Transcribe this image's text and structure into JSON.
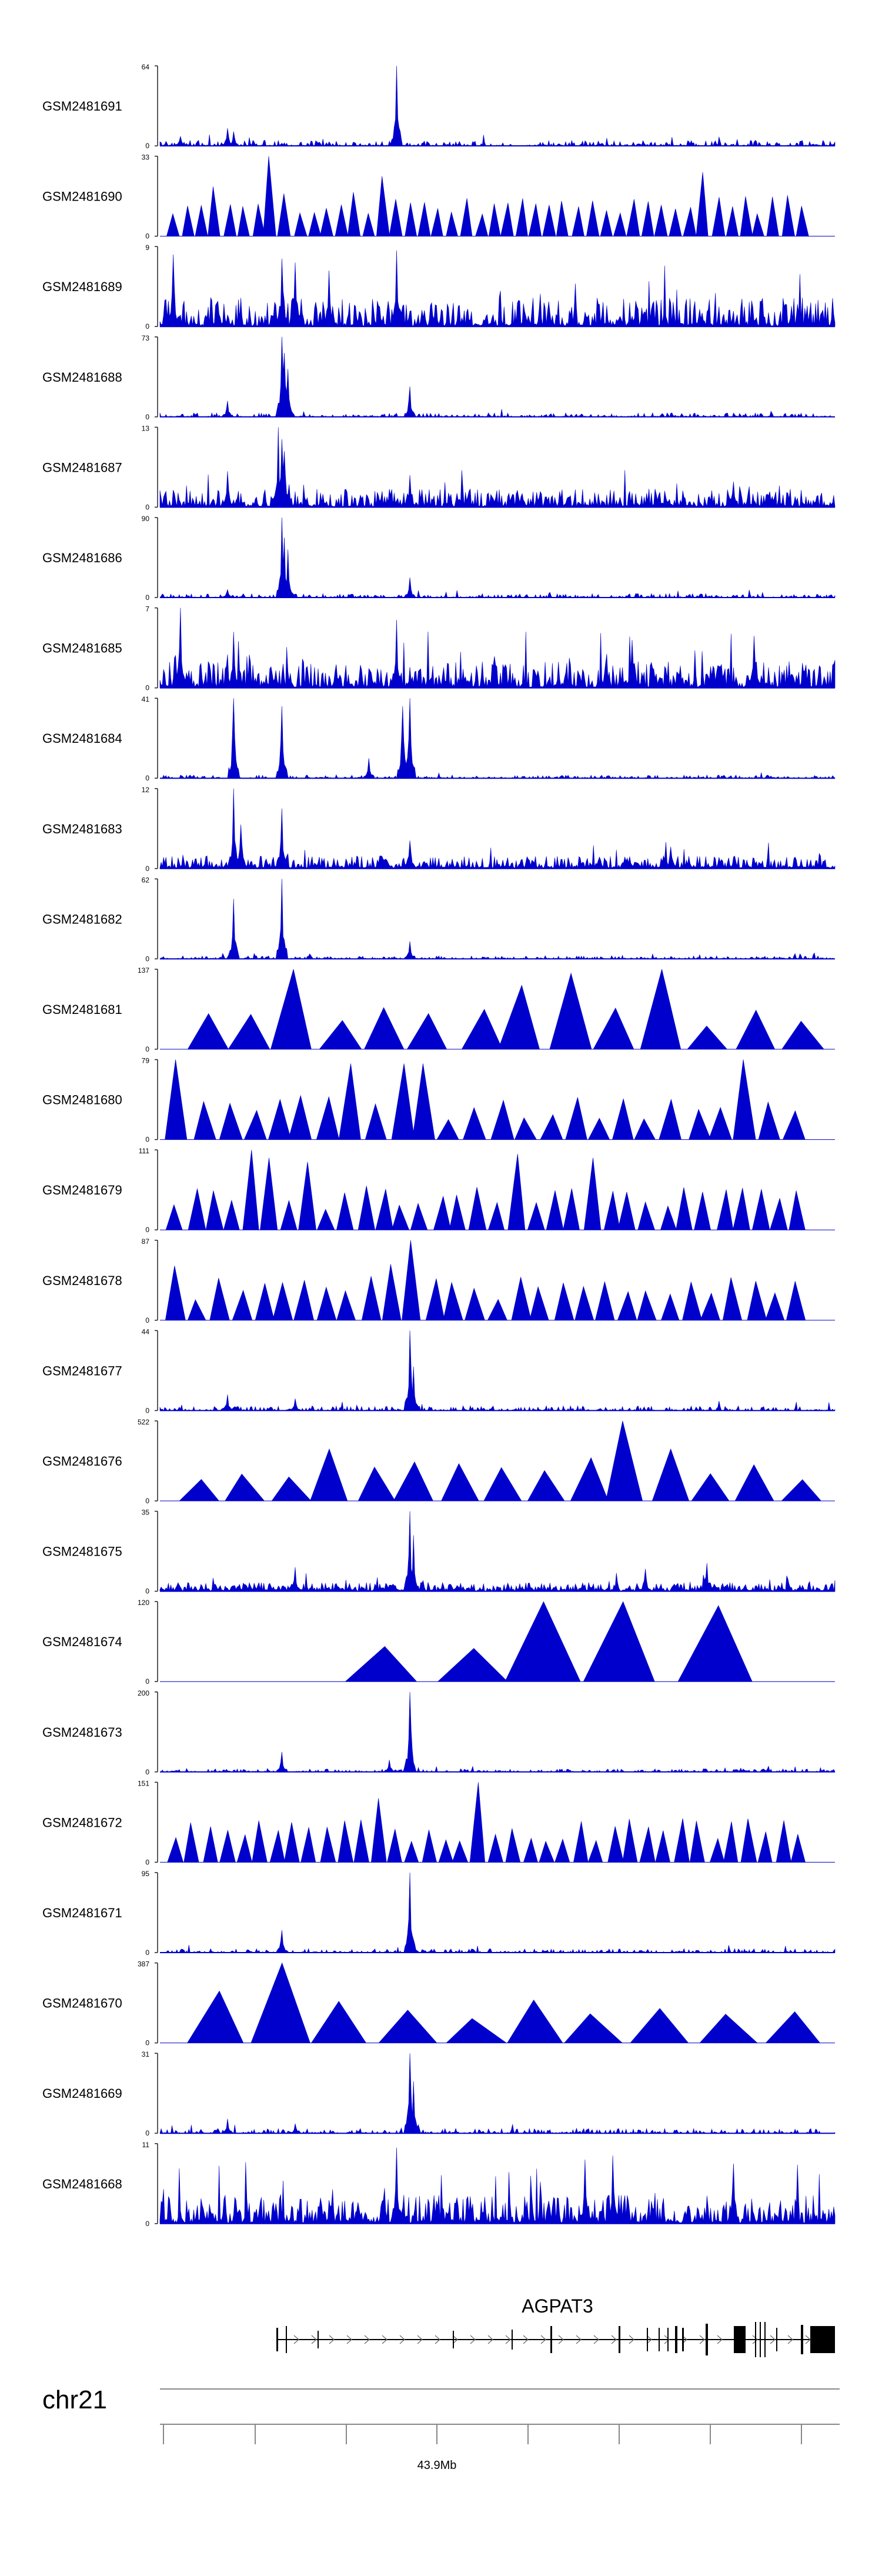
{
  "chart_data": {
    "type": "area",
    "title": "",
    "chromosome": "chr21",
    "gene": "AGPAT3",
    "axis_tick_label": "43.9Mb",
    "track_color": "#0000cc",
    "gene_color": "#000000",
    "baseline_label": "0",
    "tracks": [
      {
        "name": "GSM2481691",
        "ymax": 64,
        "ymax_label": "64",
        "style": "spiky",
        "density": 0.55,
        "bg": 0.06,
        "peaks": [
          [
            0.35,
            1.0
          ],
          [
            0.1,
            0.22
          ],
          [
            0.11,
            0.18
          ],
          [
            0.03,
            0.12
          ]
        ]
      },
      {
        "name": "GSM2481690",
        "ymax": 33,
        "ymax_label": "33",
        "style": "triangle",
        "n": 46,
        "peaks": [
          [
            0.16,
            1.0
          ],
          [
            0.09,
            0.62
          ],
          [
            0.29,
            0.55
          ],
          [
            0.33,
            0.75
          ],
          [
            0.8,
            0.8
          ],
          [
            0.99,
            0.78
          ]
        ]
      },
      {
        "name": "GSM2481689",
        "ymax": 9,
        "ymax_label": "9",
        "style": "spiky",
        "density": 1.0,
        "bg": 0.35,
        "peaks": [
          [
            0.02,
            0.9
          ],
          [
            0.18,
            0.85
          ],
          [
            0.2,
            0.8
          ],
          [
            0.25,
            0.7
          ],
          [
            0.35,
            0.95
          ]
        ]
      },
      {
        "name": "GSM2481688",
        "ymax": 73,
        "ymax_label": "73",
        "style": "spiky",
        "density": 0.45,
        "bg": 0.04,
        "peaks": [
          [
            0.18,
            1.0
          ],
          [
            0.185,
            0.8
          ],
          [
            0.19,
            0.6
          ],
          [
            0.1,
            0.2
          ],
          [
            0.37,
            0.38
          ]
        ]
      },
      {
        "name": "GSM2481687",
        "ymax": 13,
        "ymax_label": "13",
        "style": "spiky",
        "density": 1.0,
        "bg": 0.22,
        "peaks": [
          [
            0.175,
            1.0
          ],
          [
            0.18,
            0.85
          ],
          [
            0.185,
            0.7
          ],
          [
            0.1,
            0.45
          ],
          [
            0.37,
            0.4
          ]
        ]
      },
      {
        "name": "GSM2481686",
        "ymax": 90,
        "ymax_label": "90",
        "style": "spiky",
        "density": 0.45,
        "bg": 0.04,
        "peaks": [
          [
            0.18,
            1.0
          ],
          [
            0.185,
            0.75
          ],
          [
            0.19,
            0.6
          ],
          [
            0.37,
            0.25
          ],
          [
            0.1,
            0.1
          ]
        ]
      },
      {
        "name": "GSM2481685",
        "ymax": 7,
        "ymax_label": "7",
        "style": "spiky",
        "density": 1.0,
        "bg": 0.32,
        "peaks": [
          [
            0.03,
            1.0
          ],
          [
            0.35,
            0.85
          ],
          [
            0.11,
            0.7
          ],
          [
            0.7,
            0.6
          ],
          [
            0.88,
            0.65
          ]
        ]
      },
      {
        "name": "GSM2481684",
        "ymax": 41,
        "ymax_label": "41",
        "style": "spiky",
        "density": 0.45,
        "bg": 0.03,
        "peaks": [
          [
            0.37,
            1.0
          ],
          [
            0.36,
            0.9
          ],
          [
            0.18,
            0.9
          ],
          [
            0.11,
            1.0
          ],
          [
            0.31,
            0.25
          ]
        ]
      },
      {
        "name": "GSM2481683",
        "ymax": 12,
        "ymax_label": "12",
        "style": "spiky",
        "density": 1.0,
        "bg": 0.15,
        "peaks": [
          [
            0.11,
            1.0
          ],
          [
            0.18,
            0.75
          ],
          [
            0.12,
            0.55
          ],
          [
            0.37,
            0.35
          ]
        ]
      },
      {
        "name": "GSM2481682",
        "ymax": 62,
        "ymax_label": "62",
        "style": "spiky",
        "density": 0.45,
        "bg": 0.03,
        "peaks": [
          [
            0.18,
            1.0
          ],
          [
            0.11,
            0.75
          ],
          [
            0.37,
            0.22
          ]
        ]
      },
      {
        "name": "GSM2481681",
        "ymax": 137,
        "ymax_label": "137",
        "style": "triangle",
        "n": 14,
        "peaks": [
          [
            0.18,
            1.0
          ],
          [
            0.62,
            0.95
          ],
          [
            0.77,
            1.0
          ],
          [
            0.57,
            0.8
          ],
          [
            0.45,
            0.5
          ]
        ]
      },
      {
        "name": "GSM2481680",
        "ymax": 79,
        "ymax_label": "79",
        "style": "triangle",
        "n": 26,
        "peaks": [
          [
            0.03,
            1.0
          ],
          [
            0.28,
            0.95
          ],
          [
            0.38,
            0.95
          ],
          [
            0.86,
            1.0
          ],
          [
            0.99,
            1.0
          ],
          [
            0.2,
            0.55
          ]
        ]
      },
      {
        "name": "GSM2481679",
        "ymax": 111,
        "ymax_label": "111",
        "style": "triangle",
        "n": 34,
        "peaks": [
          [
            0.13,
            1.0
          ],
          [
            0.16,
            0.9
          ],
          [
            0.22,
            0.85
          ],
          [
            0.54,
            0.95
          ],
          [
            0.64,
            0.9
          ],
          [
            0.3,
            0.55
          ]
        ]
      },
      {
        "name": "GSM2481678",
        "ymax": 87,
        "ymax_label": "87",
        "style": "triangle",
        "n": 30,
        "peaks": [
          [
            0.37,
            1.0
          ],
          [
            0.36,
            0.7
          ],
          [
            0.02,
            0.68
          ],
          [
            0.33,
            0.55
          ],
          [
            0.45,
            0.4
          ]
        ]
      },
      {
        "name": "GSM2481677",
        "ymax": 44,
        "ymax_label": "44",
        "style": "spiky",
        "density": 0.5,
        "bg": 0.05,
        "peaks": [
          [
            0.37,
            1.0
          ],
          [
            0.375,
            0.55
          ],
          [
            0.1,
            0.2
          ],
          [
            0.2,
            0.15
          ]
        ]
      },
      {
        "name": "GSM2481676",
        "ymax": 522,
        "ymax_label": "522",
        "style": "triangle",
        "n": 15,
        "peaks": [
          [
            0.69,
            1.0
          ],
          [
            0.26,
            0.65
          ],
          [
            0.73,
            0.62
          ],
          [
            0.76,
            0.65
          ],
          [
            0.56,
            0.38
          ]
        ]
      },
      {
        "name": "GSM2481675",
        "ymax": 35,
        "ymax_label": "35",
        "style": "spiky",
        "density": 0.95,
        "bg": 0.1,
        "peaks": [
          [
            0.37,
            1.0
          ],
          [
            0.375,
            0.7
          ],
          [
            0.2,
            0.3
          ],
          [
            0.81,
            0.35
          ],
          [
            0.72,
            0.28
          ]
        ]
      },
      {
        "name": "GSM2481674",
        "ymax": 120,
        "ymax_label": "120",
        "style": "triangle",
        "n": 5,
        "peaks": [
          [
            0.58,
            1.0
          ],
          [
            0.68,
            1.0
          ],
          [
            0.75,
            0.98
          ],
          [
            0.8,
            0.95
          ]
        ]
      },
      {
        "name": "GSM2481673",
        "ymax": 200,
        "ymax_label": "200",
        "style": "spiky",
        "density": 0.45,
        "bg": 0.03,
        "peaks": [
          [
            0.37,
            1.0
          ],
          [
            0.18,
            0.25
          ],
          [
            0.34,
            0.15
          ]
        ]
      },
      {
        "name": "GSM2481672",
        "ymax": 151,
        "ymax_label": "151",
        "style": "triangle",
        "n": 38,
        "peaks": [
          [
            0.46,
            1.0
          ],
          [
            0.33,
            0.8
          ],
          [
            0.3,
            0.45
          ],
          [
            0.2,
            0.5
          ],
          [
            0.5,
            0.35
          ]
        ]
      },
      {
        "name": "GSM2481671",
        "ymax": 95,
        "ymax_label": "95",
        "style": "spiky",
        "density": 0.45,
        "bg": 0.04,
        "peaks": [
          [
            0.37,
            1.0
          ],
          [
            0.18,
            0.28
          ],
          [
            0.375,
            0.15
          ]
        ]
      },
      {
        "name": "GSM2481670",
        "ymax": 387,
        "ymax_label": "387",
        "style": "triangle",
        "n": 10,
        "peaks": [
          [
            0.2,
            1.0
          ],
          [
            0.05,
            0.65
          ],
          [
            0.78,
            0.3
          ],
          [
            0.94,
            0.3
          ],
          [
            0.3,
            0.35
          ]
        ]
      },
      {
        "name": "GSM2481669",
        "ymax": 31,
        "ymax_label": "31",
        "style": "spiky",
        "density": 0.5,
        "bg": 0.05,
        "peaks": [
          [
            0.37,
            1.0
          ],
          [
            0.375,
            0.65
          ],
          [
            0.1,
            0.18
          ],
          [
            0.2,
            0.12
          ]
        ]
      },
      {
        "name": "GSM2481668",
        "ymax": 11,
        "ymax_label": "11",
        "style": "spiky",
        "density": 1.0,
        "bg": 0.35,
        "peaks": [
          [
            0.35,
            0.95
          ],
          [
            0.67,
            0.85
          ],
          [
            0.63,
            0.8
          ],
          [
            0.85,
            0.75
          ]
        ]
      }
    ]
  }
}
